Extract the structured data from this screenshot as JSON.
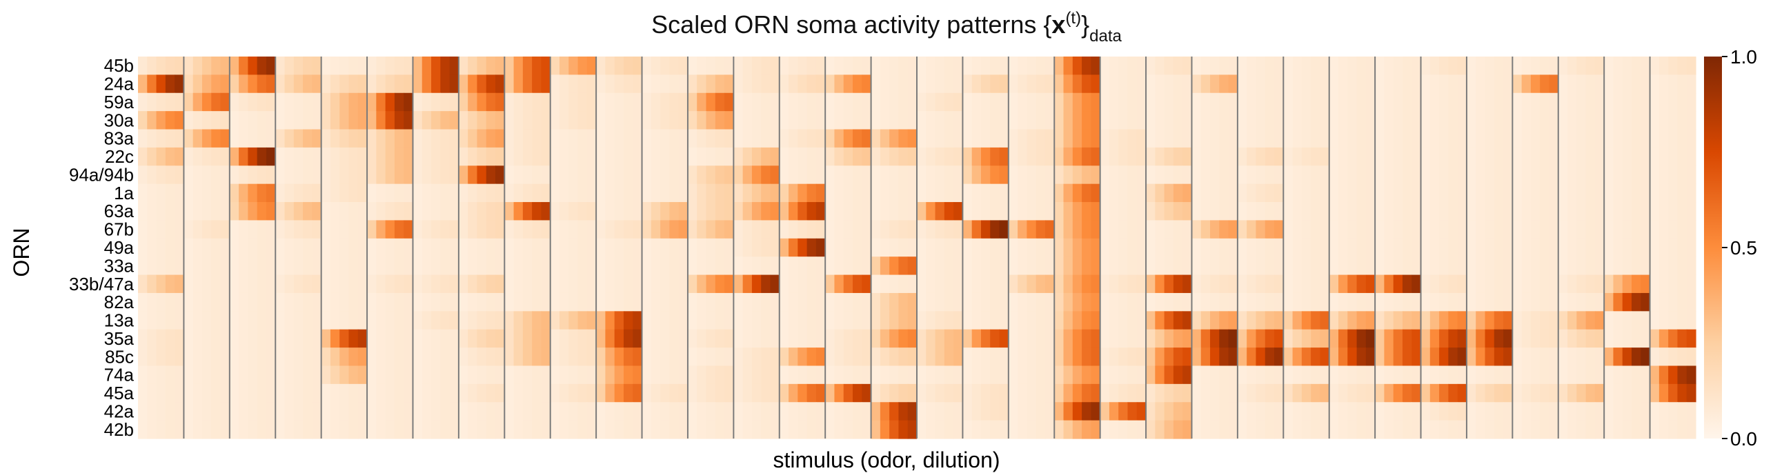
{
  "chart_data": {
    "type": "heatmap",
    "title": "Scaled ORN soma activity patterns {x(t)}data",
    "title_parts": {
      "pre": "Scaled ORN soma activity patterns {",
      "bold": "x",
      "sup": "(t)",
      "post": "}",
      "sub": "data"
    },
    "xlabel": "stimulus (odor, dilution)",
    "ylabel": "ORN",
    "rows": [
      "45b",
      "24a",
      "59a",
      "30a",
      "83a",
      "22c",
      "94a/94b",
      "1a",
      "63a",
      "67b",
      "49a",
      "33a",
      "33b/47a",
      "82a",
      "13a",
      "35a",
      "85c",
      "74a",
      "45a",
      "42a",
      "42b"
    ],
    "n_odors": 34,
    "dilutions_per_odor": 5,
    "colormap": "Oranges",
    "vmin": 0.0,
    "vmax": 1.0,
    "colorbar_ticks": [
      {
        "value": 1.0,
        "label": "1.0"
      },
      {
        "value": 0.5,
        "label": "0.5"
      },
      {
        "value": 0.0,
        "label": "0.0"
      }
    ],
    "values_per_row_by_odor": [
      [
        0.15,
        0.3,
        0.9,
        0.2,
        0.05,
        0.1,
        0.85,
        0.3,
        0.7,
        0.45,
        0.2,
        0.1,
        0.05,
        0.1,
        0.08,
        0.05,
        0.05,
        0.05,
        0.05,
        0.05,
        0.85,
        0.05,
        0.1,
        0.05,
        0.05,
        0.05,
        0.05,
        0.05,
        0.1,
        0.05,
        0.05,
        0.1,
        0.05,
        0.1
      ],
      [
        0.9,
        0.4,
        0.6,
        0.3,
        0.2,
        0.2,
        0.85,
        0.8,
        0.7,
        0.1,
        0.1,
        0.05,
        0.3,
        0.1,
        0.15,
        0.5,
        0.05,
        0.05,
        0.2,
        0.1,
        0.7,
        0.05,
        0.05,
        0.35,
        0.05,
        0.05,
        0.05,
        0.05,
        0.05,
        0.05,
        0.55,
        0.05,
        0.05,
        0.05
      ],
      [
        0.1,
        0.6,
        0.1,
        0.05,
        0.35,
        0.9,
        0.1,
        0.6,
        0.1,
        0.1,
        0.05,
        0.1,
        0.6,
        0.05,
        0.05,
        0.05,
        0.05,
        0.1,
        0.05,
        0.05,
        0.5,
        0.05,
        0.05,
        0.05,
        0.05,
        0.05,
        0.05,
        0.05,
        0.05,
        0.05,
        0.05,
        0.05,
        0.05,
        0.05
      ],
      [
        0.5,
        0.1,
        0.05,
        0.05,
        0.35,
        0.85,
        0.3,
        0.3,
        0.1,
        0.1,
        0.05,
        0.1,
        0.4,
        0.05,
        0.05,
        0.05,
        0.05,
        0.05,
        0.05,
        0.05,
        0.5,
        0.05,
        0.05,
        0.05,
        0.05,
        0.05,
        0.05,
        0.05,
        0.05,
        0.05,
        0.05,
        0.05,
        0.05,
        0.05
      ],
      [
        0.1,
        0.5,
        0.05,
        0.3,
        0.2,
        0.3,
        0.1,
        0.4,
        0.1,
        0.05,
        0.05,
        0.05,
        0.1,
        0.05,
        0.1,
        0.55,
        0.45,
        0.05,
        0.05,
        0.1,
        0.5,
        0.1,
        0.05,
        0.05,
        0.05,
        0.05,
        0.05,
        0.05,
        0.05,
        0.05,
        0.05,
        0.05,
        0.05,
        0.05
      ],
      [
        0.3,
        0.1,
        0.95,
        0.05,
        0.1,
        0.3,
        0.1,
        0.2,
        0.1,
        0.05,
        0.05,
        0.05,
        0.05,
        0.3,
        0.05,
        0.25,
        0.2,
        0.1,
        0.6,
        0.1,
        0.6,
        0.1,
        0.2,
        0.05,
        0.15,
        0.1,
        0.05,
        0.05,
        0.05,
        0.05,
        0.05,
        0.05,
        0.05,
        0.05
      ],
      [
        0.1,
        0.05,
        0.1,
        0.05,
        0.1,
        0.3,
        0.1,
        0.9,
        0.05,
        0.05,
        0.05,
        0.05,
        0.25,
        0.55,
        0.05,
        0.05,
        0.05,
        0.05,
        0.5,
        0.05,
        0.3,
        0.05,
        0.05,
        0.05,
        0.05,
        0.05,
        0.05,
        0.05,
        0.05,
        0.05,
        0.05,
        0.05,
        0.05,
        0.05
      ],
      [
        0.05,
        0.05,
        0.55,
        0.1,
        0.1,
        0.05,
        0.05,
        0.1,
        0.1,
        0.05,
        0.05,
        0.05,
        0.2,
        0.3,
        0.55,
        0.05,
        0.05,
        0.05,
        0.05,
        0.05,
        0.6,
        0.05,
        0.35,
        0.05,
        0.1,
        0.05,
        0.05,
        0.05,
        0.05,
        0.05,
        0.05,
        0.05,
        0.05,
        0.05
      ],
      [
        0.05,
        0.05,
        0.5,
        0.3,
        0.05,
        0.1,
        0.05,
        0.15,
        0.8,
        0.1,
        0.05,
        0.3,
        0.2,
        0.45,
        0.8,
        0.05,
        0.05,
        0.75,
        0.05,
        0.05,
        0.5,
        0.05,
        0.25,
        0.05,
        0.05,
        0.05,
        0.05,
        0.05,
        0.05,
        0.05,
        0.05,
        0.05,
        0.05,
        0.05
      ],
      [
        0.05,
        0.1,
        0.05,
        0.1,
        0.05,
        0.6,
        0.1,
        0.15,
        0.1,
        0.05,
        0.1,
        0.4,
        0.3,
        0.1,
        0.1,
        0.05,
        0.1,
        0.1,
        0.95,
        0.6,
        0.5,
        0.05,
        0.05,
        0.4,
        0.4,
        0.05,
        0.05,
        0.05,
        0.05,
        0.05,
        0.05,
        0.05,
        0.05,
        0.05
      ],
      [
        0.05,
        0.05,
        0.05,
        0.05,
        0.05,
        0.05,
        0.05,
        0.05,
        0.05,
        0.05,
        0.05,
        0.05,
        0.05,
        0.1,
        0.9,
        0.05,
        0.05,
        0.05,
        0.05,
        0.05,
        0.45,
        0.05,
        0.05,
        0.05,
        0.05,
        0.05,
        0.05,
        0.05,
        0.05,
        0.05,
        0.05,
        0.05,
        0.05,
        0.05
      ],
      [
        0.05,
        0.05,
        0.05,
        0.05,
        0.05,
        0.05,
        0.05,
        0.05,
        0.05,
        0.05,
        0.05,
        0.05,
        0.05,
        0.05,
        0.05,
        0.05,
        0.6,
        0.05,
        0.05,
        0.05,
        0.45,
        0.05,
        0.05,
        0.05,
        0.05,
        0.05,
        0.05,
        0.05,
        0.05,
        0.05,
        0.05,
        0.05,
        0.05,
        0.05
      ],
      [
        0.3,
        0.05,
        0.05,
        0.1,
        0.05,
        0.1,
        0.1,
        0.2,
        0.05,
        0.05,
        0.05,
        0.05,
        0.5,
        0.9,
        0.05,
        0.7,
        0.05,
        0.05,
        0.05,
        0.3,
        0.5,
        0.1,
        0.8,
        0.1,
        0.1,
        0.05,
        0.7,
        0.9,
        0.1,
        0.05,
        0.05,
        0.1,
        0.5,
        0.05
      ],
      [
        0.05,
        0.05,
        0.05,
        0.05,
        0.05,
        0.05,
        0.05,
        0.05,
        0.05,
        0.05,
        0.05,
        0.05,
        0.05,
        0.05,
        0.05,
        0.05,
        0.3,
        0.05,
        0.05,
        0.05,
        0.45,
        0.05,
        0.05,
        0.05,
        0.05,
        0.05,
        0.05,
        0.05,
        0.05,
        0.05,
        0.05,
        0.05,
        0.9,
        0.05
      ],
      [
        0.05,
        0.05,
        0.05,
        0.05,
        0.05,
        0.05,
        0.1,
        0.1,
        0.3,
        0.3,
        0.8,
        0.05,
        0.05,
        0.05,
        0.05,
        0.05,
        0.3,
        0.1,
        0.05,
        0.05,
        0.5,
        0.05,
        0.8,
        0.4,
        0.3,
        0.6,
        0.4,
        0.3,
        0.5,
        0.6,
        0.1,
        0.4,
        0.05,
        0.05
      ],
      [
        0.1,
        0.05,
        0.05,
        0.05,
        0.8,
        0.05,
        0.05,
        0.2,
        0.3,
        0.1,
        0.85,
        0.05,
        0.1,
        0.05,
        0.05,
        0.1,
        0.5,
        0.3,
        0.7,
        0.05,
        0.6,
        0.05,
        0.4,
        0.95,
        0.7,
        0.3,
        0.95,
        0.7,
        0.8,
        0.9,
        0.1,
        0.2,
        0.05,
        0.7
      ],
      [
        0.1,
        0.05,
        0.05,
        0.05,
        0.4,
        0.05,
        0.05,
        0.1,
        0.3,
        0.1,
        0.6,
        0.05,
        0.05,
        0.1,
        0.5,
        0.1,
        0.2,
        0.3,
        0.05,
        0.05,
        0.6,
        0.1,
        0.7,
        0.9,
        0.9,
        0.7,
        0.9,
        0.7,
        0.9,
        0.8,
        0.05,
        0.05,
        0.95,
        0.1
      ],
      [
        0.05,
        0.05,
        0.05,
        0.05,
        0.3,
        0.05,
        0.05,
        0.05,
        0.05,
        0.05,
        0.5,
        0.05,
        0.1,
        0.1,
        0.05,
        0.05,
        0.05,
        0.05,
        0.05,
        0.05,
        0.45,
        0.05,
        0.8,
        0.05,
        0.05,
        0.05,
        0.05,
        0.05,
        0.05,
        0.05,
        0.05,
        0.05,
        0.05,
        0.9
      ],
      [
        0.05,
        0.05,
        0.05,
        0.05,
        0.05,
        0.05,
        0.05,
        0.1,
        0.05,
        0.1,
        0.6,
        0.1,
        0.1,
        0.1,
        0.6,
        0.8,
        0.2,
        0.1,
        0.1,
        0.05,
        0.6,
        0.1,
        0.2,
        0.05,
        0.1,
        0.3,
        0.1,
        0.6,
        0.7,
        0.2,
        0.1,
        0.3,
        0.05,
        0.8
      ],
      [
        0.05,
        0.05,
        0.05,
        0.05,
        0.05,
        0.05,
        0.05,
        0.05,
        0.05,
        0.05,
        0.05,
        0.05,
        0.05,
        0.05,
        0.05,
        0.05,
        0.85,
        0.05,
        0.1,
        0.05,
        0.9,
        0.7,
        0.3,
        0.05,
        0.05,
        0.05,
        0.05,
        0.05,
        0.1,
        0.05,
        0.05,
        0.05,
        0.05,
        0.05
      ],
      [
        0.05,
        0.05,
        0.05,
        0.05,
        0.05,
        0.05,
        0.05,
        0.05,
        0.05,
        0.05,
        0.05,
        0.05,
        0.05,
        0.05,
        0.05,
        0.05,
        0.8,
        0.05,
        0.05,
        0.05,
        0.4,
        0.05,
        0.35,
        0.05,
        0.05,
        0.05,
        0.05,
        0.05,
        0.05,
        0.05,
        0.05,
        0.05,
        0.05,
        0.05
      ]
    ]
  }
}
